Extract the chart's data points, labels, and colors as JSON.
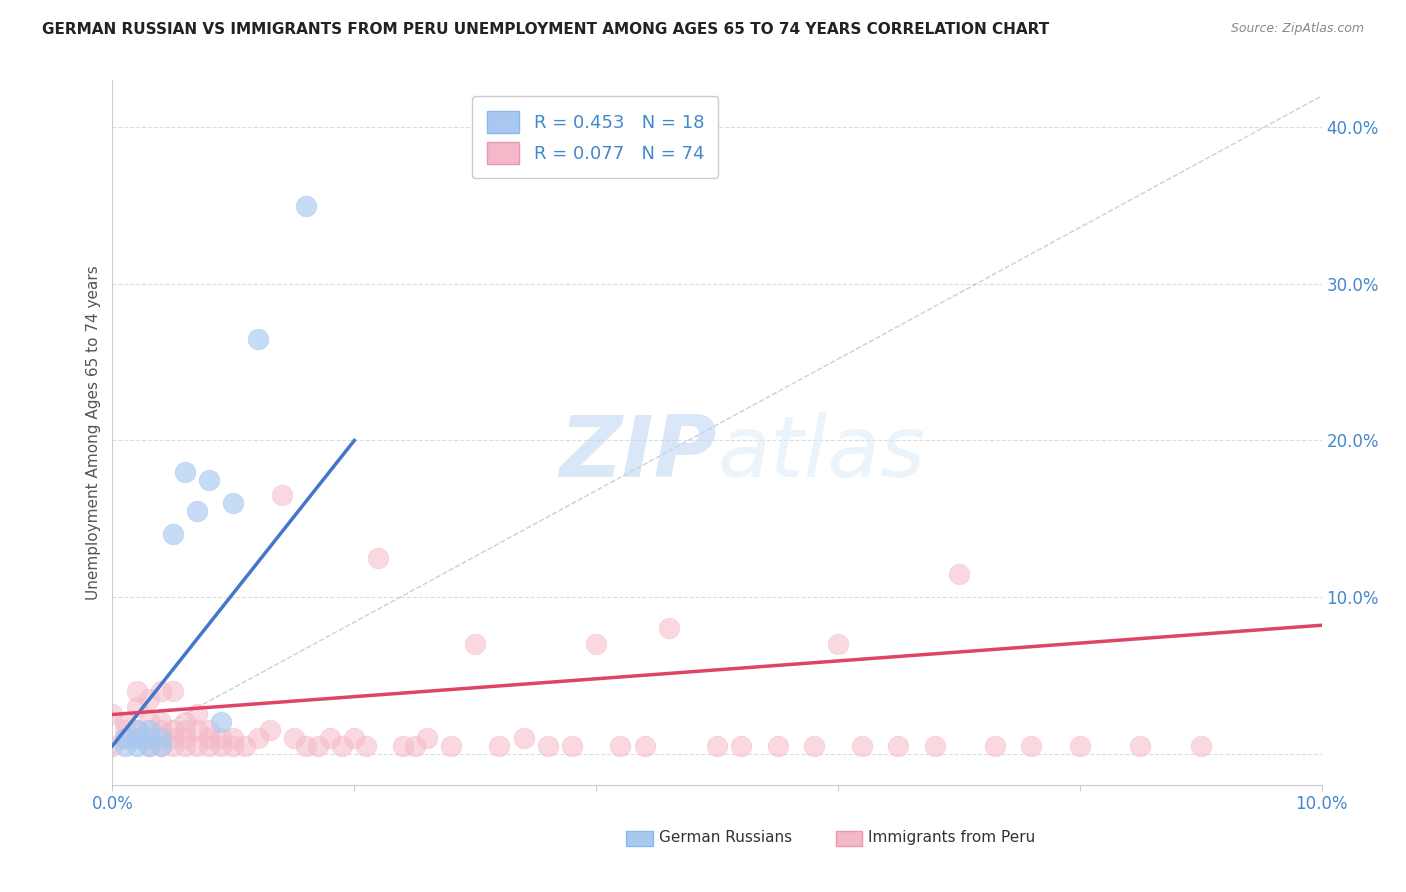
{
  "title": "GERMAN RUSSIAN VS IMMIGRANTS FROM PERU UNEMPLOYMENT AMONG AGES 65 TO 74 YEARS CORRELATION CHART",
  "source": "Source: ZipAtlas.com",
  "ylabel_label": "Unemployment Among Ages 65 to 74 years",
  "xlim": [
    0.0,
    0.1
  ],
  "ylim": [
    -0.02,
    0.43
  ],
  "x_ticks": [
    0.0,
    0.02,
    0.04,
    0.06,
    0.08,
    0.1
  ],
  "x_tick_labels": [
    "0.0%",
    "",
    "",
    "",
    "",
    "10.0%"
  ],
  "y_ticks": [
    0.0,
    0.1,
    0.2,
    0.3,
    0.4
  ],
  "y_tick_labels": [
    "",
    "10.0%",
    "20.0%",
    "30.0%",
    "40.0%"
  ],
  "legend1_label": "R = 0.453   N = 18",
  "legend2_label": "R = 0.077   N = 74",
  "legend1_color": "#a8c8f0",
  "legend2_color": "#f5b8c8",
  "trend1_color": "#4477cc",
  "trend2_color": "#dd4466",
  "ref_line_color": "#bbbbbb",
  "background_color": "#ffffff",
  "grid_color": "#dddddd",
  "watermark_text": "ZIPatlas",
  "german_russian_x": [
    0.001,
    0.001,
    0.002,
    0.002,
    0.002,
    0.003,
    0.003,
    0.003,
    0.004,
    0.004,
    0.005,
    0.006,
    0.007,
    0.008,
    0.009,
    0.01,
    0.012,
    0.016
  ],
  "german_russian_y": [
    0.005,
    0.01,
    0.005,
    0.01,
    0.015,
    0.005,
    0.01,
    0.015,
    0.005,
    0.01,
    0.14,
    0.18,
    0.155,
    0.175,
    0.02,
    0.16,
    0.265,
    0.35
  ],
  "peru_x": [
    0.0,
    0.0,
    0.001,
    0.001,
    0.001,
    0.002,
    0.002,
    0.002,
    0.002,
    0.003,
    0.003,
    0.003,
    0.003,
    0.004,
    0.004,
    0.004,
    0.004,
    0.005,
    0.005,
    0.005,
    0.005,
    0.006,
    0.006,
    0.006,
    0.006,
    0.007,
    0.007,
    0.007,
    0.008,
    0.008,
    0.008,
    0.009,
    0.009,
    0.01,
    0.01,
    0.011,
    0.012,
    0.013,
    0.014,
    0.015,
    0.016,
    0.017,
    0.018,
    0.019,
    0.02,
    0.021,
    0.022,
    0.024,
    0.025,
    0.026,
    0.028,
    0.03,
    0.032,
    0.034,
    0.036,
    0.038,
    0.04,
    0.042,
    0.044,
    0.046,
    0.05,
    0.052,
    0.055,
    0.058,
    0.06,
    0.062,
    0.065,
    0.068,
    0.07,
    0.073,
    0.076,
    0.08,
    0.085,
    0.09
  ],
  "peru_y": [
    0.025,
    0.005,
    0.02,
    0.01,
    0.015,
    0.03,
    0.04,
    0.01,
    0.015,
    0.01,
    0.02,
    0.035,
    0.005,
    0.015,
    0.02,
    0.04,
    0.005,
    0.005,
    0.01,
    0.015,
    0.04,
    0.01,
    0.015,
    0.005,
    0.02,
    0.015,
    0.025,
    0.005,
    0.01,
    0.015,
    0.005,
    0.005,
    0.01,
    0.005,
    0.01,
    0.005,
    0.01,
    0.015,
    0.165,
    0.01,
    0.005,
    0.005,
    0.01,
    0.005,
    0.01,
    0.005,
    0.125,
    0.005,
    0.005,
    0.01,
    0.005,
    0.07,
    0.005,
    0.01,
    0.005,
    0.005,
    0.07,
    0.005,
    0.005,
    0.08,
    0.005,
    0.005,
    0.005,
    0.005,
    0.07,
    0.005,
    0.005,
    0.005,
    0.115,
    0.005,
    0.005,
    0.005,
    0.005,
    0.005
  ],
  "trend1_x0": 0.0,
  "trend1_y0": 0.005,
  "trend1_x1": 0.02,
  "trend1_y1": 0.2,
  "trend2_x0": 0.0,
  "trend2_y0": 0.025,
  "trend2_x1": 0.1,
  "trend2_y1": 0.082
}
